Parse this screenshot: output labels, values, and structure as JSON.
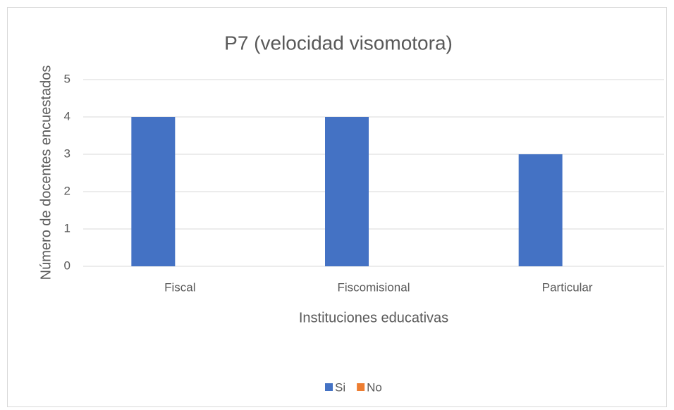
{
  "chart_data": {
    "type": "bar",
    "title": "P7 (velocidad visomotora)",
    "x_label": "Instituciones educativas",
    "y_label": "Número de docentes encuestados",
    "categories": [
      "Fiscal",
      "Fiscomisional",
      "Particular"
    ],
    "series": [
      {
        "name": "Si",
        "color": "#4472c4",
        "values": [
          4,
          4,
          3
        ]
      },
      {
        "name": "No",
        "color": "#ed7d31",
        "values": [
          0,
          0,
          0
        ]
      }
    ],
    "ylim": [
      0,
      5
    ],
    "yticks": [
      0,
      1,
      2,
      3,
      4,
      5
    ],
    "grid": true,
    "legend": "bottom"
  }
}
